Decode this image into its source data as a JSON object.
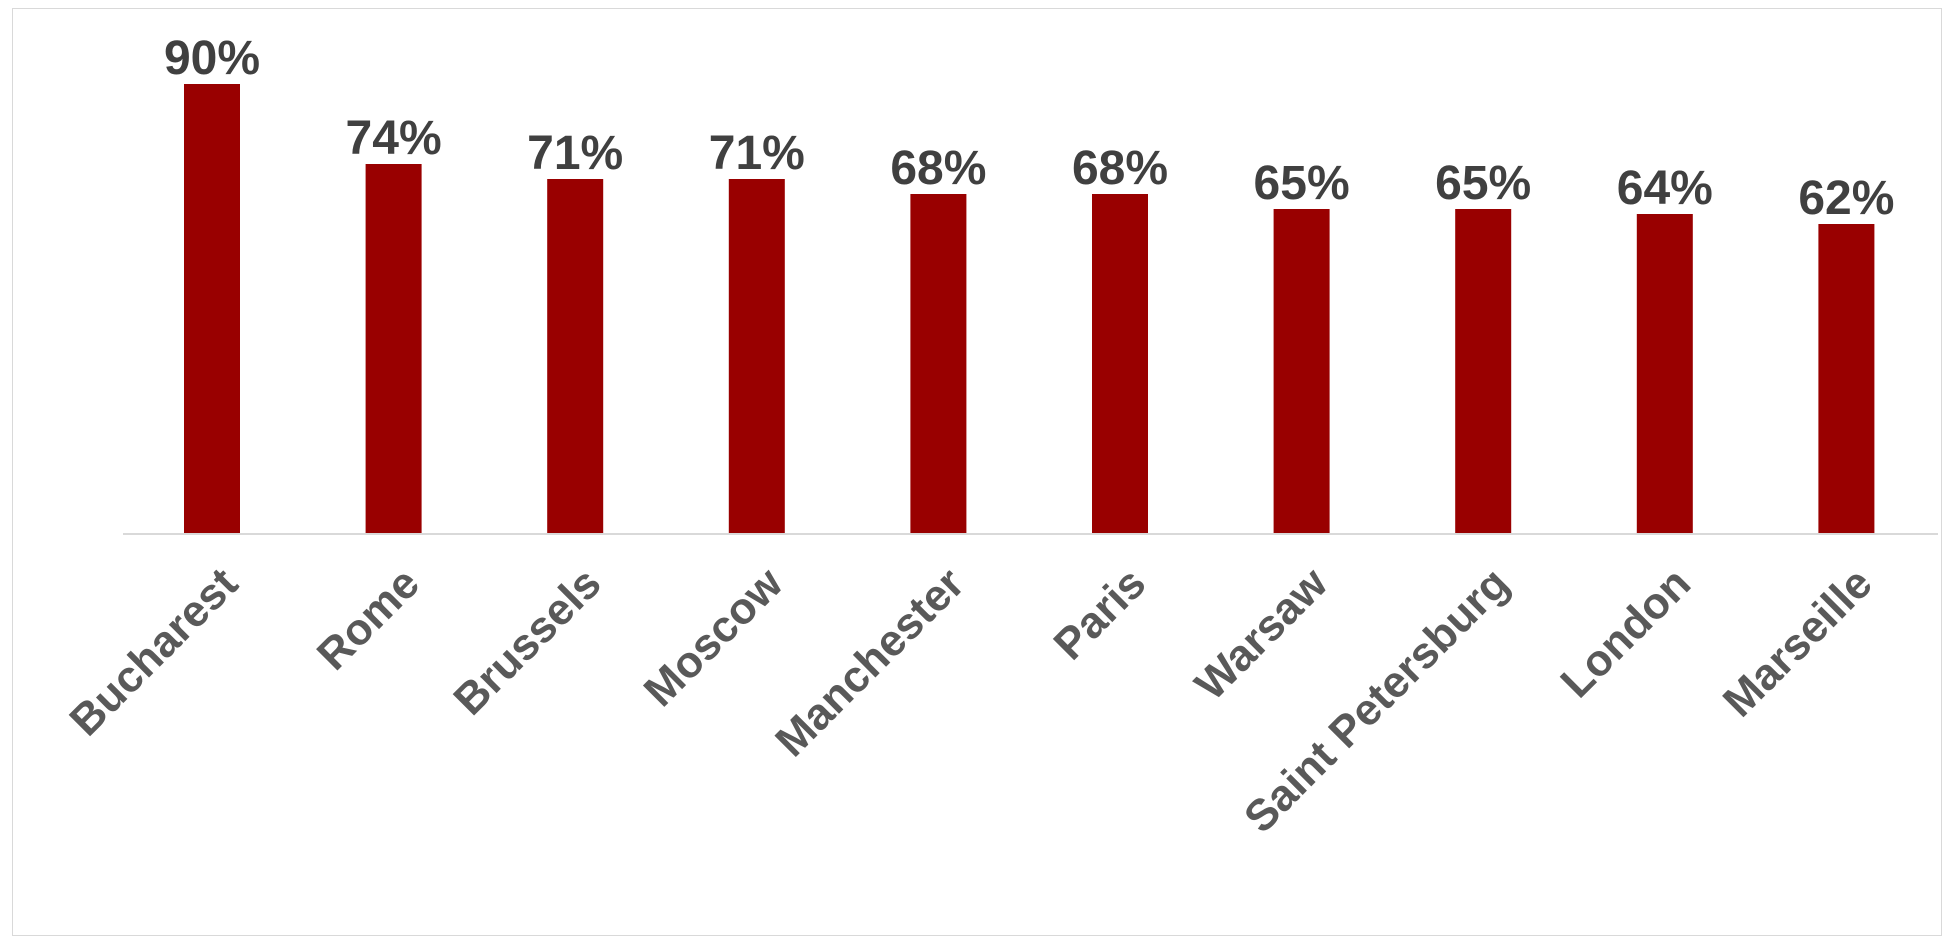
{
  "chart_data": {
    "type": "bar",
    "categories": [
      "Bucharest",
      "Rome",
      "Brussels",
      "Moscow",
      "Manchester",
      "Paris",
      "Warsaw",
      "Saint Petersburg",
      "London",
      "Marseille"
    ],
    "values": [
      90,
      74,
      71,
      71,
      68,
      68,
      65,
      65,
      64,
      62
    ],
    "value_labels": [
      "90%",
      "74%",
      "71%",
      "71%",
      "68%",
      "68%",
      "65%",
      "65%",
      "64%",
      "62%"
    ],
    "unit": "%",
    "ylim": [
      0,
      100
    ],
    "grid": false,
    "legend": "none",
    "bar_color": "#990000",
    "title": "",
    "xlabel": "",
    "ylabel": ""
  }
}
